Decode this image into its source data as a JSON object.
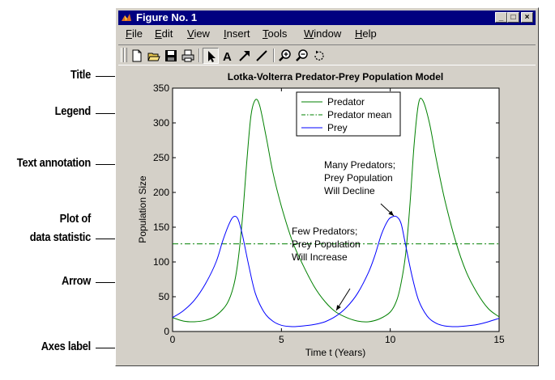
{
  "window": {
    "title": "Figure No. 1",
    "controls": {
      "minimize": "_",
      "maximize": "□",
      "close": "×"
    }
  },
  "menu": [
    {
      "label": "File",
      "accel": "F",
      "rest": "ile"
    },
    {
      "label": "Edit",
      "accel": "E",
      "rest": "dit"
    },
    {
      "label": "View",
      "accel": "V",
      "rest": "iew"
    },
    {
      "label": "Insert",
      "accel": "I",
      "rest": "nsert"
    },
    {
      "label": "Tools",
      "accel": "T",
      "rest": "ools"
    },
    {
      "label": "Window",
      "accel": "W",
      "rest": "indow"
    },
    {
      "label": "Help",
      "accel": "H",
      "rest": "elp"
    }
  ],
  "toolbar": {
    "tools": [
      "new-figure-icon",
      "open-file-icon",
      "save-icon",
      "print-icon",
      "select-arrow-icon",
      "insert-text-icon",
      "insert-arrow-icon",
      "insert-line-icon",
      "zoom-in-icon",
      "zoom-out-icon",
      "rotate-3d-icon"
    ],
    "text_tool_glyph": "A"
  },
  "callouts": [
    {
      "id": "title",
      "text": "Title"
    },
    {
      "id": "legend",
      "text": "Legend"
    },
    {
      "id": "text-annotation",
      "text": "Text annotation"
    },
    {
      "id": "plot-stat-1",
      "text": "Plot of"
    },
    {
      "id": "plot-stat-2",
      "text": "data statistic"
    },
    {
      "id": "arrow",
      "text": "Arrow"
    },
    {
      "id": "axes-label",
      "text": "Axes label"
    }
  ],
  "colors": {
    "predator": "#008000",
    "prey": "#0000ff",
    "titlebar": "#000080",
    "window_face": "#d4d0c8"
  },
  "chart_data": {
    "type": "line",
    "title": "Lotka-Volterra Predator-Prey Population Model",
    "xlabel": "Time t (Years)",
    "ylabel": "Population Size",
    "xlim": [
      0,
      15
    ],
    "ylim": [
      0,
      350
    ],
    "xticks": [
      "0",
      "5",
      "10",
      "15"
    ],
    "yticks": [
      "0",
      "50",
      "100",
      "150",
      "200",
      "250",
      "300",
      "350"
    ],
    "grid": false,
    "legend": {
      "placement": "top-right",
      "entries": [
        "Predator",
        "Predator mean",
        "Prey"
      ]
    },
    "series": [
      {
        "name": "Predator",
        "color": "#008000",
        "style": "solid",
        "x": [
          0,
          0.5,
          1,
          1.5,
          2,
          2.5,
          2.8,
          3,
          3.2,
          3.4,
          3.6,
          3.8,
          4,
          4.3,
          4.6,
          5,
          5.5,
          6,
          6.5,
          7,
          7.5,
          8,
          8.5,
          9,
          9.5,
          10,
          10.3,
          10.5,
          10.7,
          10.9,
          11.1,
          11.3,
          11.5,
          11.8,
          12.1,
          12.5,
          13,
          13.5,
          14,
          14.5,
          15
        ],
        "y": [
          20,
          15,
          14,
          16,
          23,
          40,
          65,
          100,
          160,
          240,
          310,
          333,
          325,
          280,
          230,
          180,
          130,
          95,
          65,
          43,
          28,
          20,
          15,
          14,
          18,
          28,
          45,
          70,
          110,
          180,
          270,
          328,
          332,
          300,
          250,
          190,
          130,
          85,
          55,
          33,
          21
        ]
      },
      {
        "name": "Predator mean",
        "color": "#008000",
        "style": "dashdot",
        "x": [
          0,
          15
        ],
        "y": [
          126,
          126
        ]
      },
      {
        "name": "Prey",
        "color": "#0000ff",
        "style": "solid",
        "x": [
          0,
          0.5,
          1,
          1.5,
          2,
          2.3,
          2.6,
          2.8,
          3,
          3.2,
          3.5,
          3.8,
          4.2,
          4.6,
          5,
          5.5,
          6,
          6.5,
          7,
          7.5,
          8,
          8.5,
          9,
          9.3,
          9.6,
          9.9,
          10.1,
          10.3,
          10.5,
          10.7,
          11,
          11.3,
          11.7,
          12.1,
          12.5,
          13,
          13.5,
          14,
          14.5,
          15
        ],
        "y": [
          20,
          30,
          45,
          68,
          100,
          130,
          155,
          165,
          162,
          140,
          95,
          55,
          28,
          15,
          9,
          7,
          8,
          10,
          14,
          22,
          35,
          55,
          85,
          110,
          140,
          160,
          165,
          165,
          155,
          125,
          80,
          45,
          22,
          12,
          8,
          7,
          8,
          10,
          14,
          19
        ]
      }
    ],
    "annotations": [
      {
        "id": "many",
        "lines": [
          "Many Predators;",
          "Prey Population",
          "Will Decline"
        ]
      },
      {
        "id": "few",
        "lines": [
          "Few Predators;",
          "Prey Population",
          "Will Increase"
        ]
      }
    ]
  }
}
